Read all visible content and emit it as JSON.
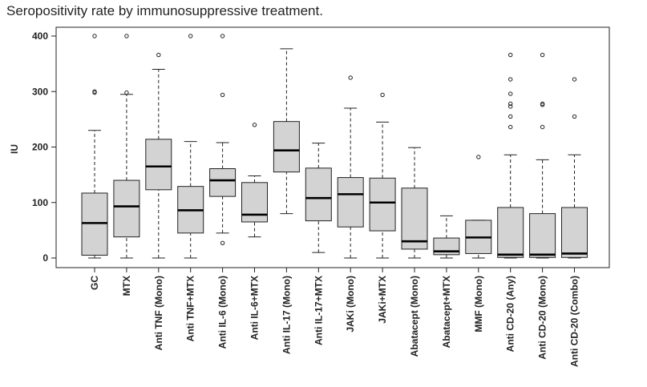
{
  "title": "Seropositivity rate by immunosuppressive treatment.",
  "chart_data": {
    "type": "boxplot",
    "ylabel": "IU",
    "xlabel": "",
    "ylim": [
      0,
      400
    ],
    "yticks": [
      0,
      100,
      200,
      300,
      400
    ],
    "grid": false,
    "box_fill": "#d3d3d3",
    "categories": [
      {
        "label": "GC",
        "whisker_low": 0,
        "q1": 5,
        "median": 63,
        "q3": 117,
        "whisker_high": 230,
        "outliers": [
          298,
          300,
          400
        ]
      },
      {
        "label": "MTX",
        "whisker_low": 0,
        "q1": 38,
        "median": 93,
        "q3": 140,
        "whisker_high": 295,
        "outliers": [
          298,
          400
        ]
      },
      {
        "label": "Anti TNF (Mono)",
        "whisker_low": 0,
        "q1": 123,
        "median": 165,
        "q3": 214,
        "whisker_high": 340,
        "outliers": [
          366
        ]
      },
      {
        "label": "Anti TNF+MTX",
        "whisker_low": 0,
        "q1": 45,
        "median": 86,
        "q3": 129,
        "whisker_high": 210,
        "outliers": [
          400
        ]
      },
      {
        "label": "Anti IL-6 (Mono)",
        "whisker_low": 45,
        "q1": 111,
        "median": 140,
        "q3": 161,
        "whisker_high": 208,
        "outliers": [
          27,
          294,
          400
        ]
      },
      {
        "label": "Anti IL-6+MTX",
        "whisker_low": 38,
        "q1": 65,
        "median": 78,
        "q3": 136,
        "whisker_high": 148,
        "outliers": [
          240
        ]
      },
      {
        "label": "Anti IL-17 (Mono)",
        "whisker_low": 80,
        "q1": 155,
        "median": 194,
        "q3": 246,
        "whisker_high": 377,
        "outliers": []
      },
      {
        "label": "Anti IL-17+MTX",
        "whisker_low": 10,
        "q1": 67,
        "median": 108,
        "q3": 162,
        "whisker_high": 207,
        "outliers": []
      },
      {
        "label": "JAKi (Mono)",
        "whisker_low": 0,
        "q1": 56,
        "median": 115,
        "q3": 145,
        "whisker_high": 270,
        "outliers": [
          325
        ]
      },
      {
        "label": "JAKi+MTX",
        "whisker_low": 0,
        "q1": 49,
        "median": 100,
        "q3": 144,
        "whisker_high": 245,
        "outliers": [
          294
        ]
      },
      {
        "label": "Abatacept (Mono)",
        "whisker_low": 0,
        "q1": 16,
        "median": 30,
        "q3": 126,
        "whisker_high": 199,
        "outliers": []
      },
      {
        "label": "Abatacept+MTX",
        "whisker_low": 0,
        "q1": 6,
        "median": 12,
        "q3": 36,
        "whisker_high": 76,
        "outliers": []
      },
      {
        "label": "MMF (Mono)",
        "whisker_low": 0,
        "q1": 8,
        "median": 37,
        "q3": 68,
        "whisker_high": 68,
        "outliers": [
          182
        ]
      },
      {
        "label": "Anti CD-20 (Any)",
        "whisker_low": 0,
        "q1": 1,
        "median": 6,
        "q3": 91,
        "whisker_high": 186,
        "outliers": [
          236,
          255,
          273,
          278,
          296,
          322,
          366
        ]
      },
      {
        "label": "Anti CD-20 (Mono)",
        "whisker_low": 0,
        "q1": 1,
        "median": 6,
        "q3": 80,
        "whisker_high": 177,
        "outliers": [
          236,
          276,
          278,
          366
        ]
      },
      {
        "label": "Anti CD-20 (Combo)",
        "whisker_low": 0,
        "q1": 1,
        "median": 8,
        "q3": 91,
        "whisker_high": 186,
        "outliers": [
          255,
          322
        ]
      }
    ]
  }
}
